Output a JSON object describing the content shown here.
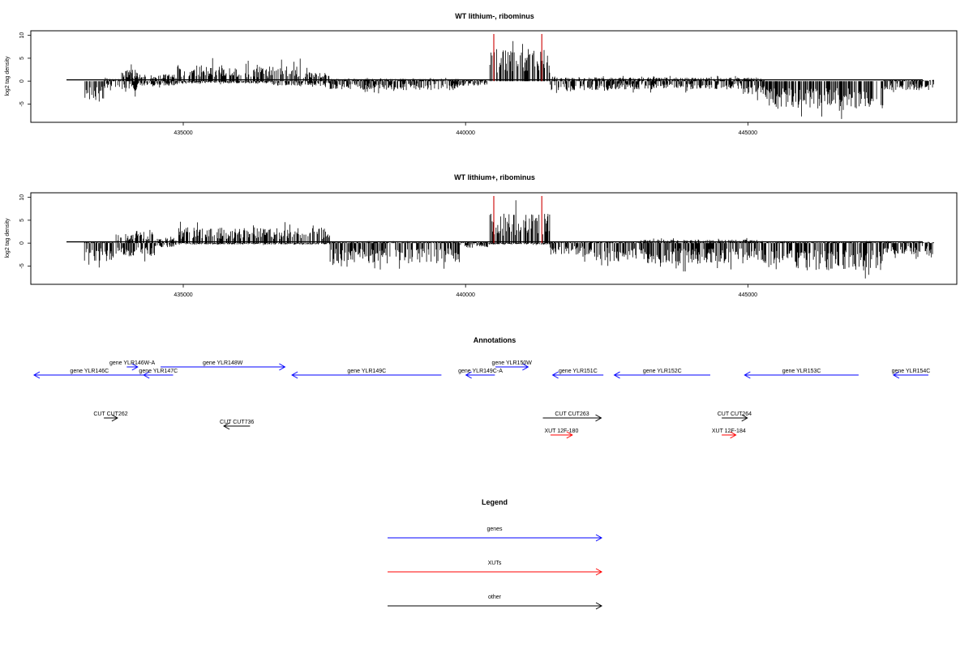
{
  "colors": {
    "gene": "#0000ff",
    "xut": "#ff0000",
    "other": "#000000",
    "highlight": "#cc0000",
    "bars": "#000000"
  },
  "chart_data": [
    {
      "type": "bar",
      "title": "WT lithium-, ribominus",
      "xlabel": "",
      "ylabel": "log2 tag density",
      "xlim": [
        432300,
        448700
      ],
      "ylim": [
        -9,
        11
      ],
      "xticks": [
        435000,
        440000,
        445000
      ],
      "xtick_labels": [
        "435000",
        "440000",
        "445000"
      ],
      "yticks": [
        -5,
        0,
        5,
        10
      ],
      "ytick_labels": [
        "-5",
        "0",
        "5",
        "10"
      ],
      "highlight_lines": [
        440500,
        441350
      ],
      "profile": [
        {
          "from": 433250,
          "to": 433600,
          "up": 0,
          "down": -4.5
        },
        {
          "from": 433600,
          "to": 433900,
          "up": 0.5,
          "down": -1.5
        },
        {
          "from": 433900,
          "to": 434200,
          "up": 2.5,
          "down": -2.5
        },
        {
          "from": 434200,
          "to": 434900,
          "up": 1.5,
          "down": -1
        },
        {
          "from": 434900,
          "to": 435700,
          "up": 3.5,
          "down": -0.5
        },
        {
          "from": 435700,
          "to": 436600,
          "up": 3,
          "down": -0.5
        },
        {
          "from": 436600,
          "to": 437100,
          "up": 3.5,
          "down": -1
        },
        {
          "from": 437100,
          "to": 437600,
          "up": 2,
          "down": -1
        },
        {
          "from": 437600,
          "to": 439900,
          "up": 0.5,
          "down": -2
        },
        {
          "from": 439900,
          "to": 440400,
          "up": 0.3,
          "down": -1
        },
        {
          "from": 440400,
          "to": 441500,
          "up": 7,
          "down": 0
        },
        {
          "from": 441500,
          "to": 442400,
          "up": 0.8,
          "down": -2
        },
        {
          "from": 442400,
          "to": 444900,
          "up": 0.8,
          "down": -1.8
        },
        {
          "from": 444900,
          "to": 445300,
          "up": 0.8,
          "down": -3
        },
        {
          "from": 445300,
          "to": 447400,
          "up": 0,
          "down": -6
        },
        {
          "from": 447400,
          "to": 448300,
          "up": 0.3,
          "down": -2
        }
      ]
    },
    {
      "type": "bar",
      "title": "WT lithium+, ribominus",
      "xlabel": "",
      "ylabel": "log2 tag density",
      "xlim": [
        432300,
        448700
      ],
      "ylim": [
        -9,
        11
      ],
      "xticks": [
        435000,
        440000,
        445000
      ],
      "xtick_labels": [
        "435000",
        "440000",
        "445000"
      ],
      "yticks": [
        -5,
        0,
        5,
        10
      ],
      "ytick_labels": [
        "-5",
        "0",
        "5",
        "10"
      ],
      "highlight_lines": [
        440500,
        441350
      ],
      "profile": [
        {
          "from": 433250,
          "to": 433800,
          "up": 0.3,
          "down": -4
        },
        {
          "from": 433800,
          "to": 434500,
          "up": 2,
          "down": -3
        },
        {
          "from": 434500,
          "to": 434900,
          "up": 1,
          "down": -1
        },
        {
          "from": 434900,
          "to": 437600,
          "up": 3.5,
          "down": -0.3
        },
        {
          "from": 437600,
          "to": 439900,
          "up": 0.3,
          "down": -4.5
        },
        {
          "from": 439900,
          "to": 440400,
          "up": 0.3,
          "down": -1
        },
        {
          "from": 440400,
          "to": 441500,
          "up": 6.5,
          "down": -0.3
        },
        {
          "from": 441500,
          "to": 442100,
          "up": 0.3,
          "down": -2.5
        },
        {
          "from": 442100,
          "to": 443100,
          "up": 0.3,
          "down": -4
        },
        {
          "from": 443100,
          "to": 445300,
          "up": 0.8,
          "down": -4.5
        },
        {
          "from": 445300,
          "to": 447400,
          "up": 0.3,
          "down": -6
        },
        {
          "from": 447400,
          "to": 448300,
          "up": 0.3,
          "down": -2.5
        }
      ]
    }
  ],
  "annotations": {
    "title": "Annotations",
    "items": [
      {
        "label": "gene YLR146C",
        "kind": "gene",
        "from": 434330,
        "to": 432300,
        "row": 2
      },
      {
        "label": "gene YLR146W-A",
        "kind": "gene",
        "from": 434000,
        "to": 434200,
        "row": 1
      },
      {
        "label": "gene YLR147C",
        "kind": "gene",
        "from": 434850,
        "to": 434310,
        "row": 2
      },
      {
        "label": "gene YLR148W",
        "kind": "gene",
        "from": 434620,
        "to": 436900,
        "row": 1
      },
      {
        "label": "gene YLR149C",
        "kind": "gene",
        "from": 439770,
        "to": 437030,
        "row": 2
      },
      {
        "label": "gene YLR149C-A",
        "kind": "gene",
        "from": 440750,
        "to": 440220,
        "row": 2
      },
      {
        "label": "gene YLR150W",
        "kind": "gene",
        "from": 440760,
        "to": 441360,
        "row": 1
      },
      {
        "label": "gene YLR151C",
        "kind": "gene",
        "from": 442740,
        "to": 441810,
        "row": 2
      },
      {
        "label": "gene YLR152C",
        "kind": "gene",
        "from": 444700,
        "to": 442940,
        "row": 2
      },
      {
        "label": "gene YLR153C",
        "kind": "gene",
        "from": 447420,
        "to": 445330,
        "row": 2
      },
      {
        "label": "gene YLR154C",
        "kind": "gene",
        "from": 448700,
        "to": 448060,
        "row": 2
      },
      {
        "label": "CUT CUT262",
        "kind": "other",
        "from": 433580,
        "to": 433830,
        "row": 3
      },
      {
        "label": "CUT CUT736",
        "kind": "other",
        "from": 436260,
        "to": 435780,
        "row": 4
      },
      {
        "label": "CUT CUT263",
        "kind": "other",
        "from": 441630,
        "to": 442700,
        "row": 3
      },
      {
        "label": "CUT CUT264",
        "kind": "other",
        "from": 444910,
        "to": 445380,
        "row": 3
      },
      {
        "label": "XUT 12F-180",
        "kind": "xut",
        "from": 441770,
        "to": 442170,
        "row": 5
      },
      {
        "label": "XUT 12F-184",
        "kind": "xut",
        "from": 444910,
        "to": 445170,
        "row": 5
      }
    ]
  },
  "legend": {
    "title": "Legend",
    "items": [
      {
        "label": "genes",
        "kind": "gene"
      },
      {
        "label": "XUTs",
        "kind": "xut"
      },
      {
        "label": "other",
        "kind": "other"
      }
    ]
  }
}
